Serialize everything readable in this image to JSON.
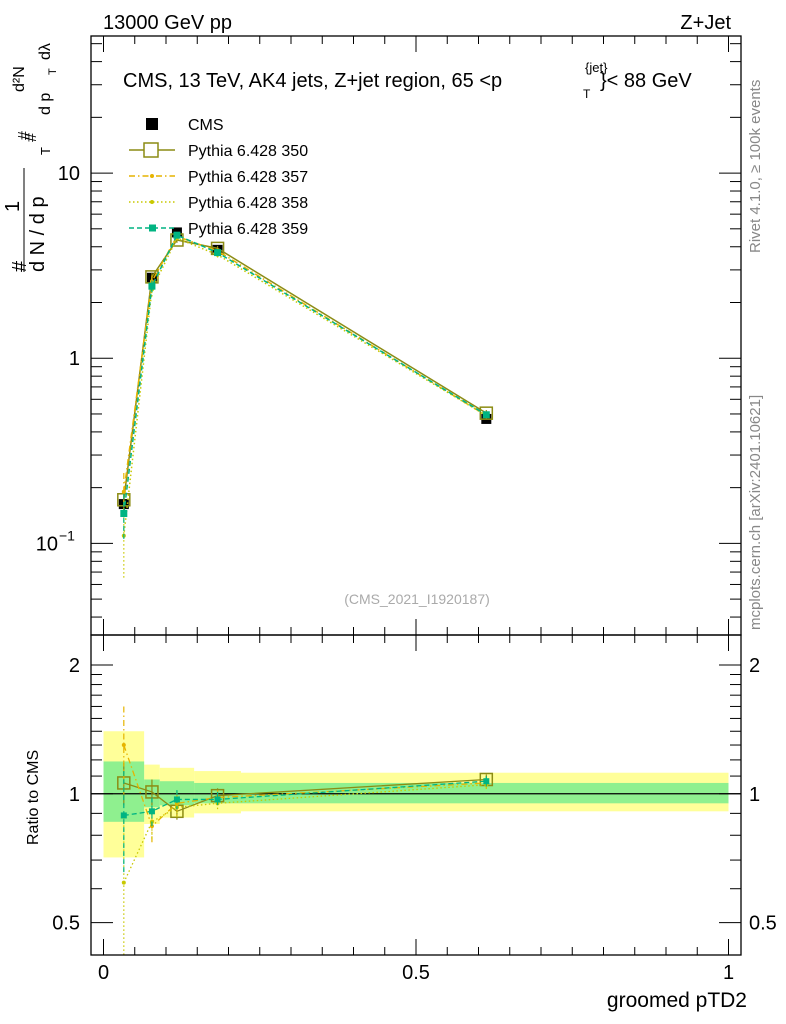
{
  "header": {
    "left": "13000 GeV pp",
    "right": "Z+Jet"
  },
  "side_labels": {
    "rivet": "Rivet 4.1.0, ≥ 100k events",
    "site": "mcplots.cern.ch [arXiv:2401.10621]"
  },
  "chart_data": [
    {
      "type": "line",
      "panel": "main",
      "title": "CMS, 13 TeV, AK4 jets, Z+jet region, 65 <p_T^{jet}< 88 GeV",
      "title_parts": {
        "prefix": "CMS, 13 TeV, AK4 jets, Z+jet region, 65 <p",
        "sub": "T",
        "sup": "{jet}",
        "suffix": "}< 88 GeV"
      },
      "ylabel_parts": {
        "one": "1",
        "num": "#",
        "dN": "d N / d p",
        "T": "T",
        "d2N": "d²N",
        "dpT": "d p",
        "dl": "dλ"
      },
      "yscale": "log",
      "ylim": [
        0.032,
        55
      ],
      "xlim": [
        -0.02,
        1.02
      ],
      "y_ticks": [
        {
          "value": 0.1,
          "label": "10",
          "sup": "−1"
        },
        {
          "value": 1,
          "label": "1",
          "sup": ""
        },
        {
          "value": 10,
          "label": "10",
          "sup": ""
        }
      ],
      "watermark": "(CMS_2021_I1920187)",
      "legend": {
        "position": "top-left"
      },
      "series": [
        {
          "name": "CMS",
          "style": "data",
          "color": "#000000",
          "x": [
            0.0325,
            0.0775,
            0.1175,
            0.1825,
            0.6125
          ],
          "y": [
            0.163,
            2.72,
            4.78,
            3.85,
            0.47
          ],
          "yerr": [
            0.01,
            0.08,
            0.1,
            0.08,
            0.015
          ]
        },
        {
          "name": "Pythia 6.428 350",
          "style": "solid",
          "marker": "open-square",
          "color": "#8c8c14",
          "x": [
            0.0325,
            0.0775,
            0.1175,
            0.1825,
            0.6125
          ],
          "y": [
            0.172,
            2.75,
            4.35,
            3.92,
            0.505
          ],
          "yerr": [
            0.02,
            0.15,
            0.15,
            0.12,
            0.02
          ]
        },
        {
          "name": "Pythia 6.428 357",
          "style": "dashdot",
          "marker": "dot",
          "color": "#e6b400",
          "x": [
            0.0325,
            0.0775,
            0.1175,
            0.1825,
            0.6125
          ],
          "y": [
            0.19,
            2.6,
            4.55,
            3.8,
            0.49
          ],
          "yerr": [
            0.05,
            0.2,
            0.18,
            0.12,
            0.02
          ]
        },
        {
          "name": "Pythia 6.428 358",
          "style": "dotted",
          "marker": "dot",
          "color": "#c8c800",
          "x": [
            0.0325,
            0.0775,
            0.1175,
            0.1825,
            0.6125
          ],
          "y": [
            0.11,
            2.35,
            4.45,
            3.62,
            0.49
          ],
          "yerr": [
            0.045,
            0.2,
            0.18,
            0.12,
            0.02
          ]
        },
        {
          "name": "Pythia 6.428 359",
          "style": "dashed",
          "marker": "filled-square",
          "color": "#00b482",
          "x": [
            0.0325,
            0.0775,
            0.1175,
            0.1825,
            0.6125
          ],
          "y": [
            0.145,
            2.45,
            4.62,
            3.72,
            0.495
          ],
          "yerr": [
            0.04,
            0.18,
            0.18,
            0.12,
            0.02
          ]
        }
      ]
    },
    {
      "type": "line",
      "panel": "ratio",
      "ylabel": "Ratio to CMS",
      "xlabel": "groomed pTD2",
      "yscale": "log",
      "ylim": [
        0.42,
        2.35
      ],
      "xlim": [
        -0.02,
        1.02
      ],
      "x_ticks": [
        {
          "value": 0,
          "label": "0"
        },
        {
          "value": 0.5,
          "label": "0.5"
        },
        {
          "value": 1,
          "label": "1"
        }
      ],
      "y_ticks": [
        {
          "value": 0.5,
          "label": "0.5"
        },
        {
          "value": 1,
          "label": "1"
        },
        {
          "value": 2,
          "label": "2"
        }
      ],
      "bands": [
        {
          "x0": 0.0,
          "x1": 0.065,
          "yellow": [
            0.71,
            1.4
          ],
          "green": [
            0.86,
            1.19
          ]
        },
        {
          "x0": 0.065,
          "x1": 0.09,
          "yellow": [
            0.85,
            1.17
          ],
          "green": [
            0.93,
            1.08
          ]
        },
        {
          "x0": 0.09,
          "x1": 0.145,
          "yellow": [
            0.88,
            1.15
          ],
          "green": [
            0.94,
            1.07
          ]
        },
        {
          "x0": 0.145,
          "x1": 0.22,
          "yellow": [
            0.9,
            1.13
          ],
          "green": [
            0.95,
            1.06
          ]
        },
        {
          "x0": 0.22,
          "x1": 1.0,
          "yellow": [
            0.91,
            1.12
          ],
          "green": [
            0.95,
            1.06
          ]
        }
      ],
      "series": [
        {
          "name": "Pythia 6.428 350",
          "color": "#8c8c14",
          "x": [
            0.0325,
            0.0775,
            0.1175,
            0.1825,
            0.6125
          ],
          "y": [
            1.06,
            1.01,
            0.91,
            0.99,
            1.08
          ],
          "yerr": [
            0.12,
            0.07,
            0.04,
            0.04,
            0.03
          ]
        },
        {
          "name": "Pythia 6.428 357",
          "color": "#e6b400",
          "x": [
            0.0325,
            0.0775,
            0.1175,
            0.1825,
            0.6125
          ],
          "y": [
            1.3,
            0.84,
            0.95,
            0.98,
            1.06
          ],
          "yerr": [
            0.3,
            0.08,
            0.06,
            0.04,
            0.03
          ]
        },
        {
          "name": "Pythia 6.428 358",
          "color": "#c8c800",
          "x": [
            0.0325,
            0.0775,
            0.1175,
            0.1825,
            0.6125
          ],
          "y": [
            0.62,
            0.86,
            0.93,
            0.95,
            1.05
          ],
          "yerr": [
            0.28,
            0.08,
            0.06,
            0.04,
            0.03
          ]
        },
        {
          "name": "Pythia 6.428 359",
          "color": "#00b482",
          "x": [
            0.0325,
            0.0775,
            0.1175,
            0.1825,
            0.6125
          ],
          "y": [
            0.89,
            0.91,
            0.97,
            0.97,
            1.07
          ],
          "yerr": [
            0.24,
            0.07,
            0.05,
            0.04,
            0.03
          ]
        }
      ]
    }
  ]
}
